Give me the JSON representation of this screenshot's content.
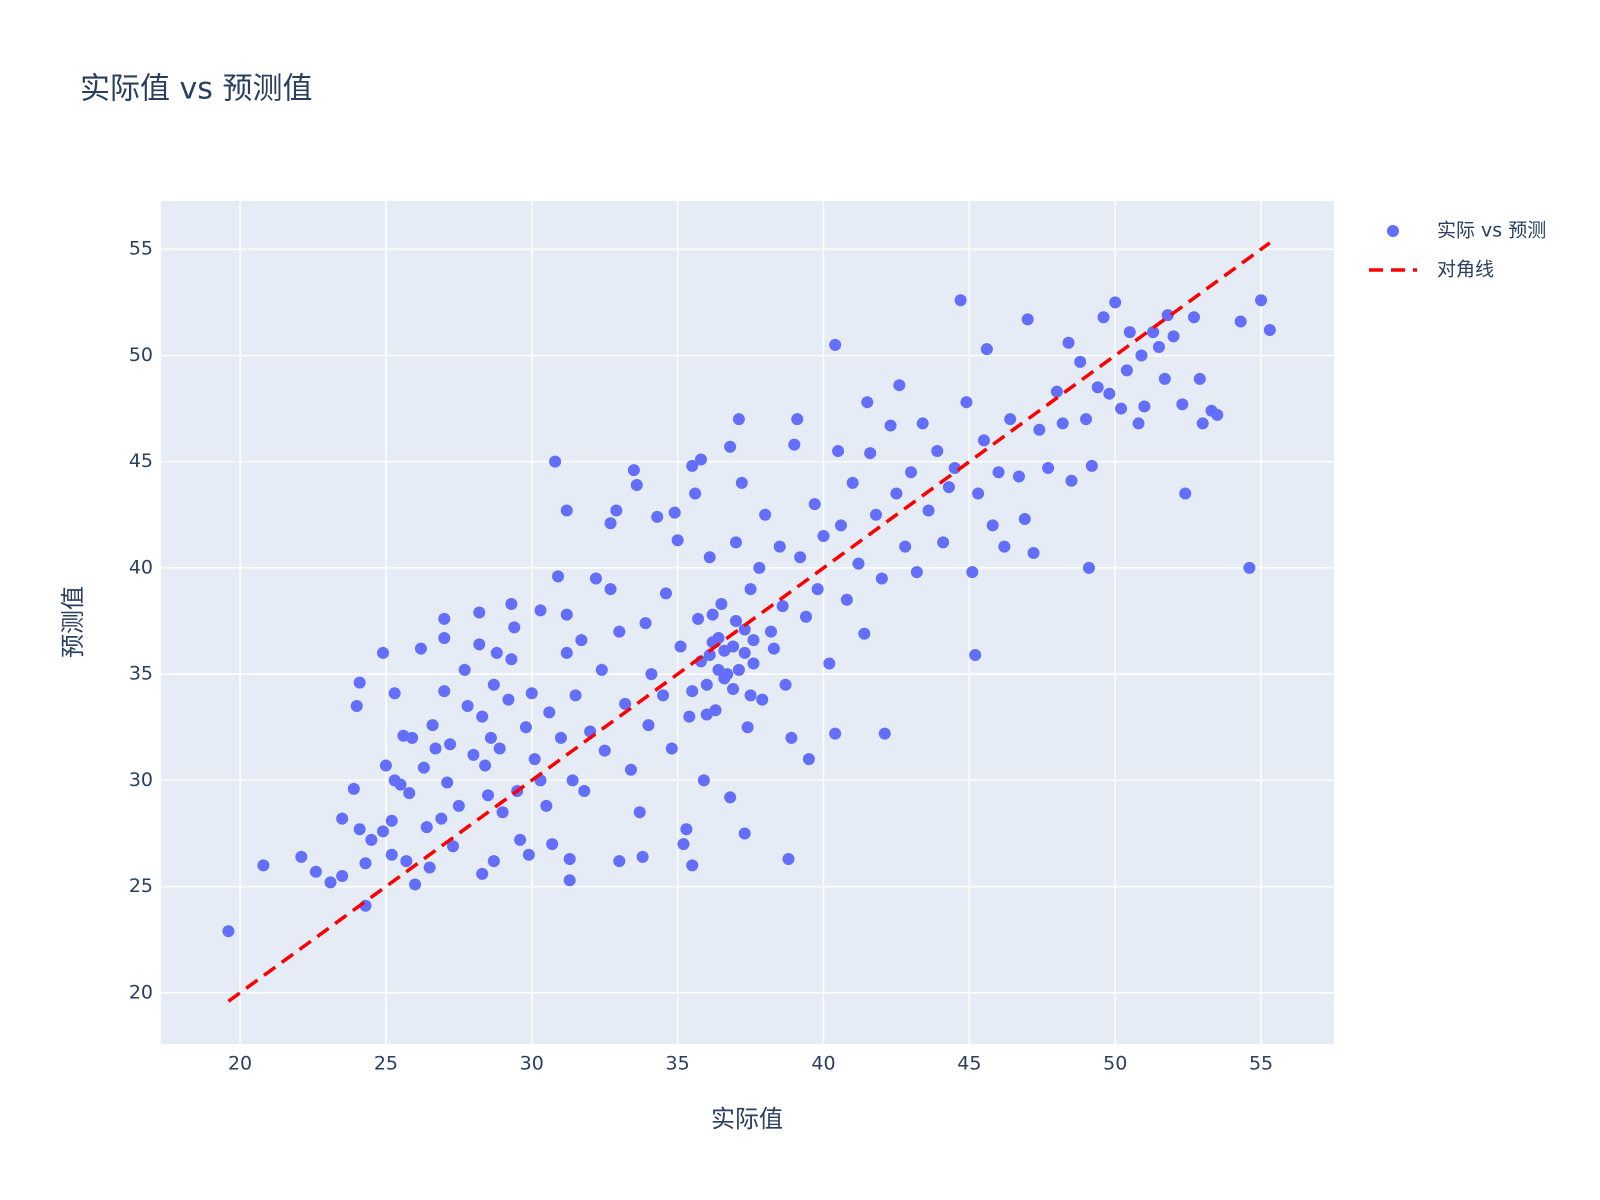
{
  "chart_data": {
    "type": "scatter",
    "title": "实际值 vs 预测值",
    "x_label": "实际值",
    "y_label": "预测值",
    "xlim": [
      17.29,
      57.5
    ],
    "ylim": [
      17.59,
      57.27
    ],
    "xticks": [
      20,
      25,
      30,
      35,
      40,
      45,
      50,
      55
    ],
    "yticks": [
      20,
      25,
      30,
      35,
      40,
      45,
      50,
      55
    ],
    "grid": true,
    "legend": "right",
    "series": [
      {
        "name": "实际 vs 预测",
        "mode": "markers",
        "color": "#636efa",
        "x": [
          19.6,
          20.8,
          22.1,
          22.6,
          23.1,
          23.5,
          23.5,
          23.9,
          24.0,
          24.1,
          24.1,
          24.3,
          24.3,
          24.5,
          24.9,
          24.9,
          25.0,
          25.2,
          25.2,
          25.3,
          25.3,
          25.5,
          25.6,
          25.7,
          25.8,
          25.9,
          26.0,
          26.2,
          26.3,
          26.4,
          26.5,
          26.6,
          26.7,
          26.9,
          27.0,
          27.0,
          27.0,
          27.1,
          27.2,
          27.3,
          27.5,
          27.7,
          27.8,
          28.0,
          28.2,
          28.2,
          28.3,
          28.3,
          28.4,
          28.5,
          28.6,
          28.7,
          28.7,
          28.8,
          28.9,
          29.0,
          29.2,
          29.3,
          29.3,
          29.4,
          29.5,
          29.6,
          29.8,
          29.9,
          30.0,
          30.1,
          30.3,
          30.3,
          30.5,
          30.6,
          30.7,
          30.8,
          30.9,
          31.0,
          31.2,
          31.2,
          31.2,
          31.3,
          31.3,
          31.4,
          31.5,
          31.7,
          31.8,
          32.0,
          32.2,
          32.4,
          32.5,
          32.7,
          32.7,
          32.9,
          33.0,
          33.0,
          33.2,
          33.4,
          33.5,
          33.6,
          33.7,
          33.8,
          33.9,
          34.0,
          34.1,
          34.3,
          34.5,
          34.6,
          34.8,
          34.9,
          35.0,
          35.1,
          35.2,
          35.3,
          35.4,
          35.5,
          35.5,
          35.6,
          35.7,
          35.8,
          35.9,
          36.0,
          36.1,
          36.2,
          36.3,
          36.4,
          36.5,
          36.6,
          36.7,
          36.8,
          36.8,
          36.9,
          37.0,
          37.0,
          37.1,
          37.2,
          37.3,
          37.3,
          37.4,
          37.5,
          37.6,
          37.8,
          37.9,
          38.0,
          38.2,
          38.3,
          38.5,
          38.6,
          38.7,
          38.8,
          38.9,
          39.0,
          39.1,
          39.2,
          39.4,
          39.5,
          39.7,
          39.8,
          40.0,
          40.2,
          40.4,
          40.4,
          40.5,
          40.6,
          40.8,
          41.0,
          41.2,
          41.4,
          41.5,
          41.6,
          41.8,
          42.0,
          42.1,
          42.3,
          42.5,
          42.6,
          42.8,
          43.0,
          43.2,
          43.4,
          43.6,
          43.9,
          44.1,
          44.3,
          44.5,
          44.7,
          44.9,
          45.1,
          45.2,
          45.3,
          45.5,
          45.6,
          45.8,
          46.0,
          46.2,
          46.4,
          46.7,
          46.9,
          47.0,
          47.2,
          47.4,
          47.7,
          48.0,
          48.2,
          48.4,
          48.5,
          48.8,
          49.0,
          49.1,
          49.2,
          49.4,
          49.6,
          49.8,
          50.0,
          50.2,
          50.4,
          50.5,
          50.8,
          50.9,
          51.0,
          51.3,
          51.5,
          51.7,
          51.8,
          52.0,
          52.3,
          52.4,
          52.7,
          52.9,
          53.0,
          53.3,
          53.5,
          54.3,
          54.6,
          55.0,
          55.3,
          35.8,
          36.1,
          36.4,
          36.6,
          36.9,
          37.1,
          37.3,
          37.5,
          36.0,
          35.5,
          36.2,
          37.6
        ],
        "values": [
          22.9,
          26.0,
          26.4,
          25.7,
          25.2,
          25.5,
          28.2,
          29.6,
          33.5,
          34.6,
          27.7,
          24.1,
          26.1,
          27.2,
          36.0,
          27.6,
          30.7,
          28.1,
          26.5,
          34.1,
          30.0,
          29.8,
          32.1,
          26.2,
          29.4,
          32.0,
          25.1,
          36.2,
          30.6,
          27.8,
          25.9,
          32.6,
          31.5,
          28.2,
          37.6,
          36.7,
          34.2,
          29.9,
          31.7,
          26.9,
          28.8,
          35.2,
          33.5,
          31.2,
          37.9,
          36.4,
          33.0,
          25.6,
          30.7,
          29.3,
          32.0,
          34.5,
          26.2,
          36.0,
          31.5,
          28.5,
          33.8,
          35.7,
          38.3,
          37.2,
          29.5,
          27.2,
          32.5,
          26.5,
          34.1,
          31.0,
          38.0,
          30.0,
          28.8,
          33.2,
          27.0,
          45.0,
          39.6,
          32.0,
          42.7,
          37.8,
          36.0,
          25.3,
          26.3,
          30.0,
          34.0,
          36.6,
          29.5,
          32.3,
          39.5,
          35.2,
          31.4,
          42.1,
          39.0,
          42.7,
          26.2,
          37.0,
          33.6,
          30.5,
          44.6,
          43.9,
          28.5,
          26.4,
          37.4,
          32.6,
          35.0,
          42.4,
          34.0,
          38.8,
          31.5,
          42.6,
          41.3,
          36.3,
          27.0,
          27.7,
          33.0,
          26.0,
          44.8,
          43.5,
          37.6,
          45.1,
          30.0,
          34.5,
          40.5,
          36.5,
          33.3,
          35.2,
          38.3,
          36.1,
          35.0,
          45.7,
          29.2,
          34.3,
          41.2,
          37.5,
          47.0,
          44.0,
          27.5,
          36.0,
          32.5,
          39.0,
          35.5,
          40.0,
          33.8,
          42.5,
          37.0,
          36.2,
          41.0,
          38.2,
          34.5,
          26.3,
          32.0,
          45.8,
          47.0,
          40.5,
          37.7,
          31.0,
          43.0,
          39.0,
          41.5,
          35.5,
          50.5,
          32.2,
          45.5,
          42.0,
          38.5,
          44.0,
          40.2,
          36.9,
          47.8,
          45.4,
          42.5,
          39.5,
          32.2,
          46.7,
          43.5,
          48.6,
          41.0,
          44.5,
          39.8,
          46.8,
          42.7,
          45.5,
          41.2,
          43.8,
          44.7,
          52.6,
          47.8,
          39.8,
          35.9,
          43.5,
          46.0,
          50.3,
          42.0,
          44.5,
          41.0,
          47.0,
          44.3,
          42.3,
          51.7,
          40.7,
          46.5,
          44.7,
          48.3,
          46.8,
          50.6,
          44.1,
          49.7,
          47.0,
          40.0,
          44.8,
          48.5,
          51.8,
          48.2,
          52.5,
          47.5,
          49.3,
          51.1,
          46.8,
          50.0,
          47.6,
          51.1,
          50.4,
          48.9,
          51.9,
          50.9,
          47.7,
          43.5,
          51.8,
          48.9,
          46.8,
          47.4,
          47.2,
          51.6,
          40.0,
          52.6,
          51.2,
          35.6,
          35.9,
          36.7,
          34.8,
          36.3,
          35.2,
          37.1,
          34.0,
          33.1,
          34.2,
          37.8,
          36.6
        ]
      },
      {
        "name": "对角线",
        "mode": "lines",
        "dash": true,
        "color": "#ff0000",
        "x": [
          19.6,
          55.3
        ],
        "values": [
          19.6,
          55.3
        ]
      }
    ]
  }
}
